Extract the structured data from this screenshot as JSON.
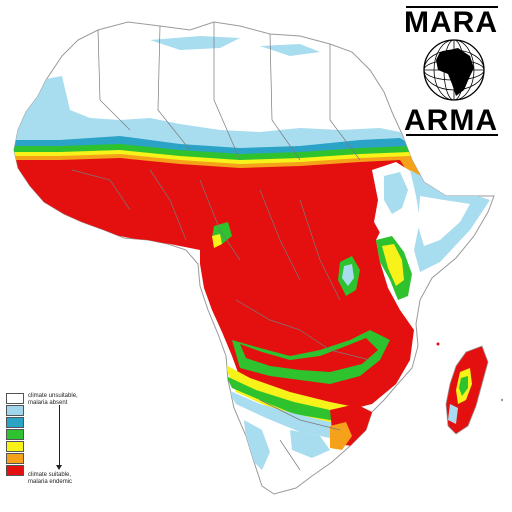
{
  "logo": {
    "top_text": "MARA",
    "bottom_text": "ARMA",
    "globe_icon": "africa-globe-icon"
  },
  "legend": {
    "top_label_line1": "climate unsuitable,",
    "top_label_line2": "malaria absent",
    "bottom_label_line1": "climate suitable,",
    "bottom_label_line2": "malaria endemic",
    "swatches": [
      "#ffffff",
      "#9fd6ec",
      "#2ba3c6",
      "#2ec22e",
      "#f6f21a",
      "#f5a21a",
      "#e3100f"
    ]
  },
  "colors": {
    "absent": "#ffffff",
    "low": "#a8dcef",
    "mid_low": "#2ba3c6",
    "mid": "#2ec22e",
    "mid_high": "#f6f21a",
    "high": "#f5a21a",
    "endemic": "#e3100f",
    "border": "#7a7a7a"
  }
}
